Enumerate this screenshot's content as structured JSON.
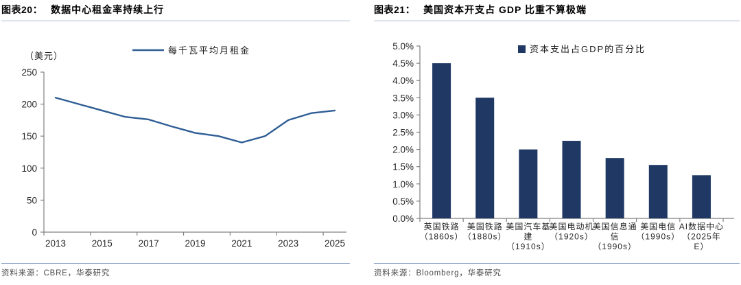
{
  "accent_colors": {
    "bar": "#1F3864",
    "line": "#2E5D94",
    "title_rule": "#A9BAD4",
    "footer_rule": "#8AA0C6",
    "axis": "#808080"
  },
  "left_panel": {
    "figure_label": "图表20：",
    "title": "数据中心租金率持续上行",
    "source": "资料来源：CBRE，华泰研究"
  },
  "right_panel": {
    "figure_label": "图表21：",
    "title": "美国资本开支占 GDP 比重不算极端",
    "source": "资料来源：Bloomberg，华泰研究"
  },
  "chart_data": [
    {
      "type": "line",
      "title": "数据中心租金率持续上行",
      "unit_label": "（美元）",
      "legend": [
        "每千瓦平均月租金"
      ],
      "legend_position": "top",
      "grid": false,
      "x": [
        2013,
        2014,
        2015,
        2016,
        2017,
        2018,
        2019,
        2020,
        2021,
        2022,
        2023,
        2024,
        2025
      ],
      "series": [
        {
          "name": "每千瓦平均月租金",
          "values": [
            210,
            200,
            190,
            180,
            176,
            165,
            155,
            150,
            140,
            150,
            175,
            186,
            190
          ]
        }
      ],
      "ylim": [
        0,
        250
      ],
      "yticks": [
        0,
        50,
        100,
        150,
        200,
        250
      ],
      "xtick_labels": [
        "2013",
        "2015",
        "2017",
        "2019",
        "2021",
        "2023",
        "2025"
      ],
      "color": "#2E5D94"
    },
    {
      "type": "bar",
      "title": "美国资本开支占 GDP 比重不算极端",
      "legend": [
        "资本支出占GDP的百分比"
      ],
      "legend_position": "top",
      "grid": false,
      "categories": [
        "英国铁路\n（1860s）",
        "美国铁路\n（1880s）",
        "美国汽车基\n建\n（1910s）",
        "美国电动机\n（1920s）",
        "美国信息通\n信\n（1990s）",
        "美国电信\n（1990s）",
        "AI数据中心\n（2025年\nE）"
      ],
      "values": [
        4.5,
        3.5,
        2.0,
        2.25,
        1.75,
        1.55,
        1.25
      ],
      "ylim": [
        0,
        5
      ],
      "ytick_labels": [
        "0.0%",
        "0.5%",
        "1.0%",
        "1.5%",
        "2.0%",
        "2.5%",
        "3.0%",
        "3.5%",
        "4.0%",
        "4.5%",
        "5.0%"
      ],
      "color": "#1F3864"
    }
  ]
}
